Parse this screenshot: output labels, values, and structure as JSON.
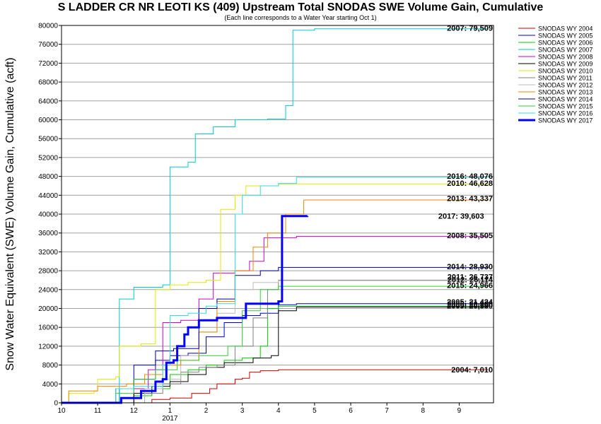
{
  "chart_data": {
    "type": "line",
    "title": "S LADDER CR NR LEOTI KS (409) Upstream Total SNODAS SWE Volume Gain, Cumulative",
    "subtitle": "(Each line corresponds to a Water Year starting Oct 1)",
    "ylabel": "Snow Water Equivalent (SWE) Volume Gain, Cumulative (acft)",
    "xlabel": "",
    "ylim": [
      0,
      80000
    ],
    "yticks": [
      0,
      4000,
      8000,
      12000,
      16000,
      20000,
      24000,
      28000,
      32000,
      36000,
      40000,
      44000,
      48000,
      52000,
      56000,
      60000,
      64000,
      68000,
      72000,
      76000,
      80000
    ],
    "ytick_labels": [
      "0",
      "4000",
      "8000",
      "12000",
      "16000",
      "20000",
      "24000",
      "28000",
      "32000",
      "36000",
      "40000",
      "44000",
      "48000",
      "52000",
      "56000",
      "60000",
      "64000",
      "68000",
      "72000",
      "76000",
      "80000"
    ],
    "xlim": [
      10,
      21.95
    ],
    "xticks": [
      10,
      11,
      12,
      13,
      14,
      15,
      16,
      17,
      18,
      19,
      20,
      21
    ],
    "xtick_labels": [
      "10",
      "11",
      "12",
      "1",
      "2",
      "3",
      "4",
      "5",
      "6",
      "7",
      "8",
      "9"
    ],
    "year_label": {
      "text": "2017",
      "x": 13
    },
    "grid": true,
    "legend_position": "top-right",
    "series": [
      {
        "name": "SNODAS WY 2004",
        "color": "#cc0000",
        "width": 1,
        "end_label": "2004: 7,010",
        "points": [
          [
            10,
            0
          ],
          [
            12.3,
            0
          ],
          [
            12.5,
            700
          ],
          [
            13,
            1000
          ],
          [
            13.6,
            2000
          ],
          [
            14.1,
            3000
          ],
          [
            14.3,
            4000
          ],
          [
            14.8,
            5000
          ],
          [
            15.0,
            5200
          ],
          [
            15.2,
            6500
          ],
          [
            15.5,
            6800
          ],
          [
            16.0,
            7000
          ],
          [
            21.8,
            7010
          ]
        ]
      },
      {
        "name": "SNODAS WY 2005",
        "color": "#0000cc",
        "width": 1,
        "end_label": "2005: 21,424",
        "points": [
          [
            10,
            0
          ],
          [
            11.3,
            0
          ],
          [
            11.6,
            3000
          ],
          [
            12.0,
            5000
          ],
          [
            12.6,
            9000
          ],
          [
            13.0,
            10000
          ],
          [
            13.5,
            10500
          ],
          [
            14.0,
            14000
          ],
          [
            14.5,
            17000
          ],
          [
            15.0,
            18500
          ],
          [
            15.5,
            19000
          ],
          [
            16.0,
            20800
          ],
          [
            16.5,
            21000
          ],
          [
            21.8,
            21424
          ]
        ]
      },
      {
        "name": "SNODAS WY 2006",
        "color": "#00cc00",
        "width": 1,
        "end_label": "2006: 20,986",
        "points": [
          [
            10,
            0
          ],
          [
            11.8,
            0
          ],
          [
            12.0,
            1500
          ],
          [
            12.5,
            3000
          ],
          [
            13.0,
            6000
          ],
          [
            13.5,
            7000
          ],
          [
            14.0,
            8000
          ],
          [
            14.5,
            9000
          ],
          [
            15.0,
            9500
          ],
          [
            15.5,
            12000
          ],
          [
            15.7,
            20000
          ],
          [
            16.0,
            20500
          ],
          [
            21.8,
            20986
          ]
        ]
      },
      {
        "name": "SNODAS WY 2007",
        "color": "#00cccc",
        "width": 1,
        "end_label": "2007: 79,509",
        "points": [
          [
            10,
            0
          ],
          [
            11.5,
            0
          ],
          [
            11.6,
            22000
          ],
          [
            12.0,
            24500
          ],
          [
            12.8,
            25000
          ],
          [
            13.0,
            50000
          ],
          [
            13.5,
            51000
          ],
          [
            13.7,
            57000
          ],
          [
            14.2,
            58500
          ],
          [
            14.8,
            60000
          ],
          [
            15.7,
            60200
          ],
          [
            16.2,
            63000
          ],
          [
            16.4,
            79000
          ],
          [
            17.0,
            79300
          ],
          [
            21.8,
            79509
          ]
        ]
      },
      {
        "name": "SNODAS WY 2008",
        "color": "#cc00cc",
        "width": 1,
        "end_label": "2008: 35,505",
        "points": [
          [
            10,
            0
          ],
          [
            11.5,
            0
          ],
          [
            12.0,
            3000
          ],
          [
            12.4,
            7000
          ],
          [
            12.8,
            17000
          ],
          [
            13.3,
            17500
          ],
          [
            13.8,
            22000
          ],
          [
            14.2,
            27500
          ],
          [
            14.8,
            28000
          ],
          [
            15.2,
            30000
          ],
          [
            15.6,
            35000
          ],
          [
            16.5,
            35300
          ],
          [
            21.8,
            35505
          ]
        ]
      },
      {
        "name": "SNODAS WY 2009",
        "color": "#000000",
        "width": 1,
        "end_label": "2009: 20,580",
        "points": [
          [
            10,
            0
          ],
          [
            11.5,
            0
          ],
          [
            12.0,
            2000
          ],
          [
            12.5,
            3500
          ],
          [
            13.0,
            4500
          ],
          [
            13.5,
            6000
          ],
          [
            14.0,
            7500
          ],
          [
            14.5,
            8500
          ],
          [
            15.3,
            9500
          ],
          [
            15.8,
            10000
          ],
          [
            16.0,
            19500
          ],
          [
            16.5,
            20300
          ],
          [
            21.8,
            20580
          ]
        ]
      },
      {
        "name": "SNODAS WY 2010",
        "color": "#e6e600",
        "width": 1,
        "end_label": "2010: 46,628",
        "points": [
          [
            10,
            0
          ],
          [
            10.2,
            2000
          ],
          [
            10.9,
            2500
          ],
          [
            11.0,
            5000
          ],
          [
            11.5,
            5500
          ],
          [
            11.6,
            12000
          ],
          [
            12.2,
            12500
          ],
          [
            12.6,
            24000
          ],
          [
            13.0,
            25000
          ],
          [
            13.5,
            25500
          ],
          [
            14.0,
            26000
          ],
          [
            14.4,
            41000
          ],
          [
            14.8,
            44000
          ],
          [
            15.1,
            46000
          ],
          [
            16.0,
            46400
          ],
          [
            21.8,
            46628
          ]
        ]
      },
      {
        "name": "SNODAS WY 2011",
        "color": "#7f7f7f",
        "width": 1,
        "end_label": "2011: 26,737",
        "points": [
          [
            10,
            0
          ],
          [
            11.8,
            0
          ],
          [
            12.3,
            2000
          ],
          [
            12.8,
            4000
          ],
          [
            13.3,
            6500
          ],
          [
            13.8,
            7500
          ],
          [
            14.3,
            8000
          ],
          [
            14.8,
            12000
          ],
          [
            15.3,
            18000
          ],
          [
            15.7,
            24000
          ],
          [
            16.0,
            26000
          ],
          [
            21.8,
            26737
          ]
        ]
      },
      {
        "name": "SNODAS WY 2012",
        "color": "#bbbbbb",
        "width": 1,
        "end_label": "2012: 26,114",
        "points": [
          [
            10,
            0
          ],
          [
            11.8,
            0
          ],
          [
            12.3,
            3000
          ],
          [
            12.8,
            5000
          ],
          [
            13.3,
            10000
          ],
          [
            13.8,
            15000
          ],
          [
            14.3,
            19000
          ],
          [
            14.8,
            24000
          ],
          [
            15.3,
            25500
          ],
          [
            16.0,
            25900
          ],
          [
            21.8,
            26114
          ]
        ]
      },
      {
        "name": "SNODAS WY 2013",
        "color": "#ee8800",
        "width": 1,
        "end_label": "2013: 43,337",
        "points": [
          [
            10,
            0
          ],
          [
            10.2,
            2500
          ],
          [
            11.0,
            3500
          ],
          [
            11.8,
            4000
          ],
          [
            12.3,
            6000
          ],
          [
            12.8,
            8000
          ],
          [
            13.3,
            9000
          ],
          [
            13.8,
            15000
          ],
          [
            14.3,
            21500
          ],
          [
            14.8,
            28000
          ],
          [
            15.3,
            33000
          ],
          [
            15.7,
            36000
          ],
          [
            16.2,
            40000
          ],
          [
            16.7,
            43000
          ],
          [
            21.8,
            43337
          ]
        ]
      },
      {
        "name": "SNODAS WY 2014",
        "color": "#000099",
        "width": 1,
        "end_label": "2014: 28,930",
        "points": [
          [
            10,
            0
          ],
          [
            11.0,
            0
          ],
          [
            11.5,
            3000
          ],
          [
            12.0,
            8000
          ],
          [
            12.6,
            11000
          ],
          [
            13.1,
            11500
          ],
          [
            13.8,
            20000
          ],
          [
            14.3,
            22000
          ],
          [
            14.8,
            27000
          ],
          [
            15.5,
            28000
          ],
          [
            16.0,
            28700
          ],
          [
            21.8,
            28930
          ]
        ]
      },
      {
        "name": "SNODAS WY 2015",
        "color": "#33cc33",
        "width": 1,
        "end_label": "2015: 24,966",
        "points": [
          [
            10,
            0
          ],
          [
            11.0,
            0
          ],
          [
            11.5,
            2000
          ],
          [
            12.0,
            5000
          ],
          [
            12.6,
            7000
          ],
          [
            13.2,
            9000
          ],
          [
            13.8,
            10000
          ],
          [
            14.6,
            12000
          ],
          [
            15.0,
            19500
          ],
          [
            15.5,
            24000
          ],
          [
            16.0,
            24700
          ],
          [
            21.8,
            24966
          ]
        ]
      },
      {
        "name": "SNODAS WY 2016",
        "color": "#33dddd",
        "width": 1,
        "end_label": "2016: 48,076",
        "points": [
          [
            10,
            0
          ],
          [
            11.0,
            0
          ],
          [
            11.5,
            3000
          ],
          [
            12.0,
            3500
          ],
          [
            12.8,
            8000
          ],
          [
            13.0,
            18500
          ],
          [
            13.5,
            19000
          ],
          [
            14.0,
            20500
          ],
          [
            14.3,
            21000
          ],
          [
            14.8,
            40000
          ],
          [
            15.0,
            44000
          ],
          [
            15.5,
            46000
          ],
          [
            16.0,
            46500
          ],
          [
            16.5,
            47800
          ],
          [
            21.8,
            48076
          ]
        ]
      },
      {
        "name": "SNODAS WY 2017",
        "color": "#0000ff",
        "width": 3,
        "end_label": "2017: 39,603",
        "points": [
          [
            10,
            0
          ],
          [
            11.5,
            0
          ],
          [
            11.65,
            1000
          ],
          [
            12.1,
            1000
          ],
          [
            12.2,
            2500
          ],
          [
            12.5,
            2500
          ],
          [
            12.6,
            4500
          ],
          [
            12.8,
            5000
          ],
          [
            12.9,
            8500
          ],
          [
            13.1,
            9000
          ],
          [
            13.2,
            12000
          ],
          [
            13.4,
            14500
          ],
          [
            13.5,
            16000
          ],
          [
            13.8,
            17500
          ],
          [
            14.3,
            18000
          ],
          [
            15.0,
            18000
          ],
          [
            15.1,
            21000
          ],
          [
            15.5,
            21000
          ],
          [
            16.0,
            21500
          ],
          [
            16.1,
            39600
          ],
          [
            16.8,
            39603
          ]
        ]
      }
    ]
  }
}
